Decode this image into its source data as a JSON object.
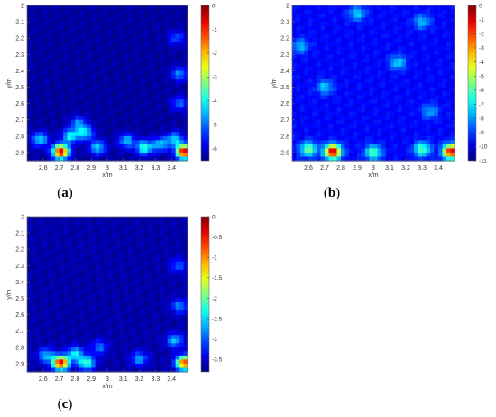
{
  "colormap": "jet",
  "colors": {
    "background": "#ffffff",
    "axis_text": "#333333"
  },
  "chart_data": [
    {
      "type": "heatmap",
      "panel": "a",
      "caption": {
        "open": "(",
        "letter": "a",
        "close": ")"
      },
      "xlabel": "x/m",
      "ylabel": "y/m",
      "xlim": [
        2.5,
        3.5
      ],
      "ylim": [
        2.0,
        2.95
      ],
      "y_reversed": true,
      "x_ticks": [
        "2.6",
        "2.7",
        "2.8",
        "2.9",
        "3",
        "3.1",
        "3.2",
        "3.3",
        "3.4"
      ],
      "y_ticks": [
        "2",
        "2.1",
        "2.2",
        "2.3",
        "2.4",
        "2.5",
        "2.6",
        "2.7",
        "2.8",
        "2.9"
      ],
      "colorbar": {
        "min": -6.5,
        "max": 0,
        "ticks": [
          "0",
          "-1",
          "-2",
          "-3",
          "-4",
          "-5",
          "-6"
        ]
      },
      "floor": -6.3,
      "hotspots": [
        {
          "x": 2.71,
          "y": 2.895,
          "value": -0.4
        },
        {
          "x": 3.48,
          "y": 2.895,
          "value": -0.4
        },
        {
          "x": 2.58,
          "y": 2.82,
          "value": -4.2
        },
        {
          "x": 2.77,
          "y": 2.8,
          "value": -4.0
        },
        {
          "x": 2.86,
          "y": 2.78,
          "value": -4.1
        },
        {
          "x": 2.94,
          "y": 2.87,
          "value": -4.3
        },
        {
          "x": 3.12,
          "y": 2.83,
          "value": -4.4
        },
        {
          "x": 3.23,
          "y": 2.87,
          "value": -3.7
        },
        {
          "x": 3.33,
          "y": 2.85,
          "value": -4.4
        },
        {
          "x": 3.42,
          "y": 2.82,
          "value": -4.3
        },
        {
          "x": 3.45,
          "y": 2.42,
          "value": -4.8
        },
        {
          "x": 3.43,
          "y": 2.2,
          "value": -5.2
        },
        {
          "x": 2.82,
          "y": 2.72,
          "value": -4.8
        },
        {
          "x": 3.45,
          "y": 2.6,
          "value": -5.0
        }
      ]
    },
    {
      "type": "heatmap",
      "panel": "b",
      "caption": {
        "open": "(",
        "letter": "b",
        "close": ")"
      },
      "xlabel": "x/m",
      "ylabel": "y/m",
      "xlim": [
        2.5,
        3.5
      ],
      "ylim": [
        2.0,
        2.95
      ],
      "y_reversed": true,
      "x_ticks": [
        "2.6",
        "2.7",
        "2.8",
        "2.9",
        "3",
        "3.1",
        "3.2",
        "3.3",
        "3.4"
      ],
      "y_ticks": [
        "2",
        "2.1",
        "2.2",
        "2.3",
        "2.4",
        "2.5",
        "2.6",
        "2.7",
        "2.8",
        "2.9"
      ],
      "colorbar": {
        "min": -11,
        "max": 0,
        "ticks": [
          "0",
          "-1",
          "-2",
          "-3",
          "-4",
          "-5",
          "-6",
          "-7",
          "-8",
          "-9",
          "-10",
          "-11"
        ]
      },
      "floor": -9.6,
      "hotspots": [
        {
          "x": 2.75,
          "y": 2.895,
          "value": -0.5
        },
        {
          "x": 3.48,
          "y": 2.895,
          "value": -0.8
        },
        {
          "x": 3.0,
          "y": 2.9,
          "value": -5.8
        },
        {
          "x": 2.6,
          "y": 2.88,
          "value": -5.6
        },
        {
          "x": 3.3,
          "y": 2.88,
          "value": -5.9
        },
        {
          "x": 3.15,
          "y": 2.35,
          "value": -7.2
        },
        {
          "x": 2.7,
          "y": 2.5,
          "value": -7.4
        },
        {
          "x": 3.3,
          "y": 2.1,
          "value": -7.5
        },
        {
          "x": 2.9,
          "y": 2.05,
          "value": -7.3
        },
        {
          "x": 2.55,
          "y": 2.25,
          "value": -7.6
        },
        {
          "x": 3.35,
          "y": 2.65,
          "value": -7.8
        }
      ]
    },
    {
      "type": "heatmap",
      "panel": "c",
      "caption": {
        "open": "(",
        "letter": "c",
        "close": ")"
      },
      "xlabel": "x/m",
      "ylabel": "y/m",
      "xlim": [
        2.5,
        3.5
      ],
      "ylim": [
        2.0,
        2.95
      ],
      "y_reversed": true,
      "x_ticks": [
        "2.6",
        "2.7",
        "2.8",
        "2.9",
        "3",
        "3.1",
        "3.2",
        "3.3",
        "3.4"
      ],
      "y_ticks": [
        "2",
        "2.1",
        "2.2",
        "2.3",
        "2.4",
        "2.5",
        "2.6",
        "2.7",
        "2.8",
        "2.9"
      ],
      "colorbar": {
        "min": -3.8,
        "max": 0,
        "ticks": [
          "0",
          "-0.5",
          "-1",
          "-1.5",
          "-2",
          "-2.5",
          "-3",
          "-3.5"
        ]
      },
      "floor": -3.65,
      "hotspots": [
        {
          "x": 2.71,
          "y": 2.895,
          "value": -0.3
        },
        {
          "x": 3.48,
          "y": 2.895,
          "value": -0.6
        },
        {
          "x": 2.87,
          "y": 2.895,
          "value": -2.1
        },
        {
          "x": 2.8,
          "y": 2.84,
          "value": -2.4
        },
        {
          "x": 2.62,
          "y": 2.85,
          "value": -2.6
        },
        {
          "x": 3.42,
          "y": 2.76,
          "value": -2.6
        },
        {
          "x": 3.45,
          "y": 2.55,
          "value": -2.8
        },
        {
          "x": 3.2,
          "y": 2.87,
          "value": -2.7
        },
        {
          "x": 2.95,
          "y": 2.8,
          "value": -2.9
        },
        {
          "x": 3.44,
          "y": 2.3,
          "value": -3.0
        }
      ]
    }
  ]
}
